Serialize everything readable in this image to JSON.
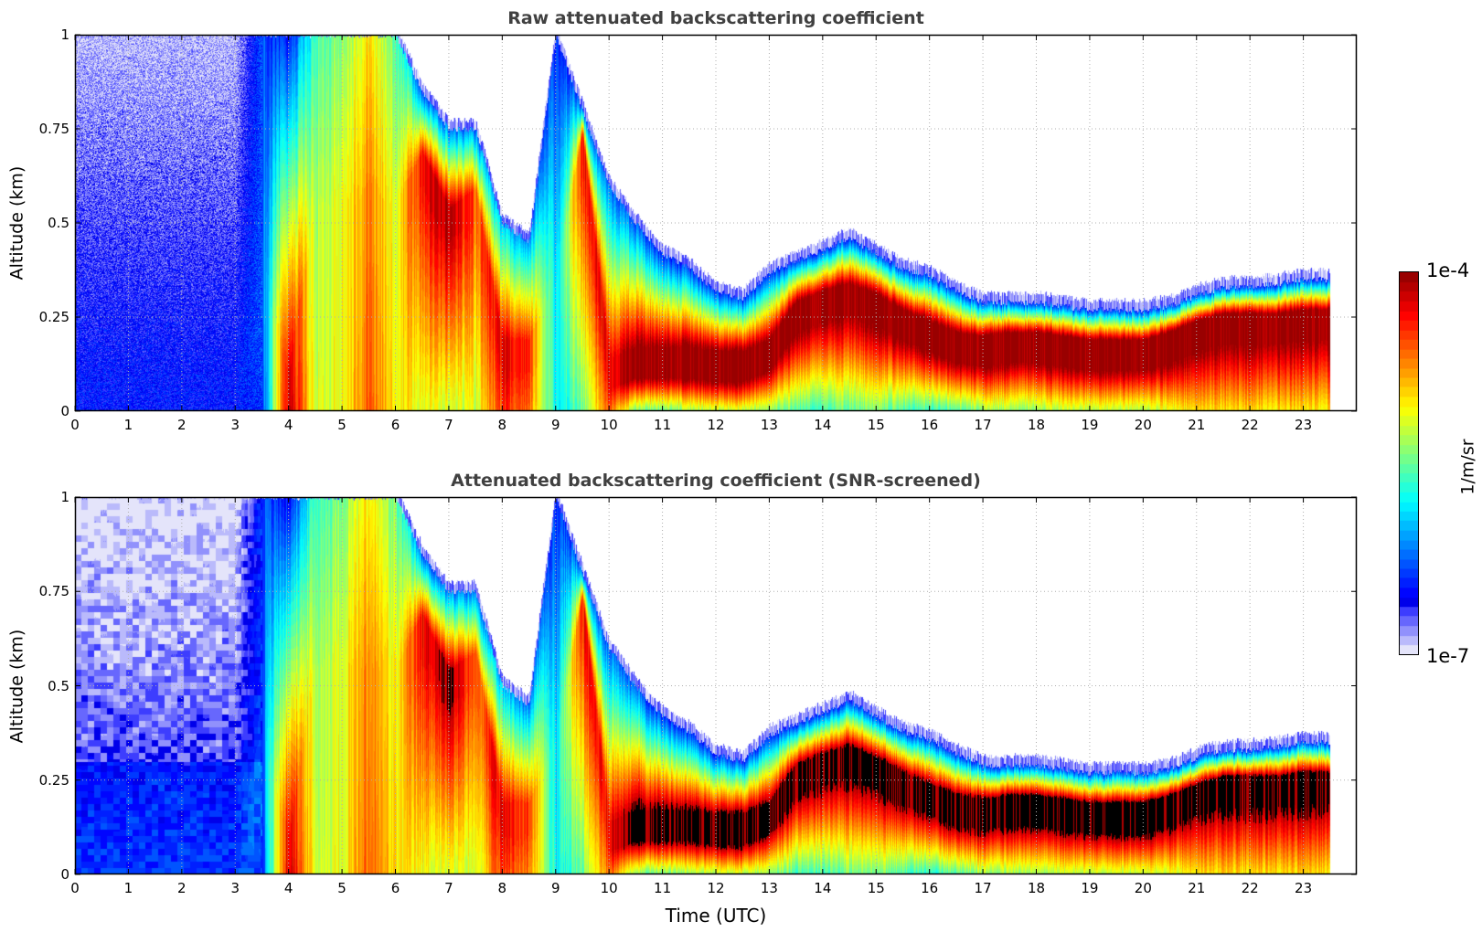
{
  "chart_data": {
    "type": "heatmap",
    "xlabel": "Time (UTC)",
    "ylabel": "Altitude (km)",
    "xlim": [
      0,
      24
    ],
    "ylim": [
      0,
      1
    ],
    "xticks": [
      "0",
      "1",
      "2",
      "3",
      "4",
      "5",
      "6",
      "7",
      "8",
      "9",
      "10",
      "11",
      "12",
      "13",
      "14",
      "15",
      "16",
      "17",
      "18",
      "19",
      "20",
      "21",
      "22",
      "23"
    ],
    "yticks": [
      "0",
      "0.25",
      "0.5",
      "0.75",
      "1"
    ],
    "grid": true,
    "panels": [
      {
        "title": "Raw attenuated backscattering coefficient",
        "screened": false
      },
      {
        "title": "Attenuated backscattering coefficient (SNR-screened)",
        "screened": true
      }
    ],
    "colorbar": {
      "scale": "log10",
      "min": 1e-07,
      "max": 0.0001,
      "min_label": "1e-7",
      "max_label": "1e-4",
      "unit": "1/m/sr",
      "placement": "right"
    },
    "profile_samples": {
      "note_units": "time in hours UTC, altitude in km, values are log10(1/m/sr)",
      "time_h": [
        0,
        0.5,
        1,
        1.5,
        2,
        2.5,
        3,
        3.5,
        4,
        4.5,
        5,
        5.5,
        6,
        6.5,
        7,
        7.5,
        8,
        8.5,
        9,
        9.5,
        10,
        10.5,
        11,
        11.5,
        12,
        12.5,
        13,
        13.5,
        14,
        14.5,
        15,
        15.5,
        16,
        16.5,
        17,
        17.5,
        18,
        18.5,
        19,
        19.5,
        20,
        20.5,
        21,
        21.5,
        22,
        22.5,
        23,
        23.5
      ],
      "surface_log": [
        -6.5,
        -6.5,
        -6.5,
        -6.5,
        -6.5,
        -6.5,
        -6.5,
        -6.4,
        -4.1,
        -5.2,
        -5.1,
        -4.6,
        -5.0,
        -5.1,
        -5.2,
        -5.2,
        -4.5,
        -4.7,
        -5.8,
        -5.5,
        -4.6,
        -5.5,
        -5.5,
        -5.4,
        -5.3,
        -5.3,
        -5.4,
        -5.6,
        -5.6,
        -5.5,
        -5.5,
        -5.6,
        -5.7,
        -5.6,
        -5.4,
        -5.4,
        -5.4,
        -5.3,
        -5.3,
        -5.3,
        -5.3,
        -5.2,
        -5.0,
        -5.0,
        -5.0,
        -5.0,
        -5.0,
        -5.0
      ],
      "peak_alt_km": [
        0.05,
        0.05,
        0.05,
        0.05,
        0.05,
        0.05,
        0.05,
        0.3,
        0.05,
        0.5,
        0.5,
        0.5,
        0.5,
        0.65,
        0.5,
        0.55,
        0.15,
        0.15,
        0.3,
        0.7,
        0.1,
        0.13,
        0.13,
        0.13,
        0.12,
        0.12,
        0.15,
        0.25,
        0.28,
        0.3,
        0.27,
        0.23,
        0.2,
        0.17,
        0.16,
        0.17,
        0.17,
        0.16,
        0.15,
        0.15,
        0.15,
        0.17,
        0.2,
        0.22,
        0.22,
        0.22,
        0.23,
        0.23
      ],
      "peak_log": [
        -6.5,
        -6.5,
        -6.5,
        -6.5,
        -6.5,
        -6.5,
        -6.5,
        -6.3,
        -4.2,
        -5.3,
        -5.1,
        -4.7,
        -5.1,
        -4.3,
        -4.1,
        -4.6,
        -4.3,
        -4.5,
        -5.9,
        -4.4,
        -4.3,
        -4.0,
        -4.0,
        -4.0,
        -4.0,
        -4.0,
        -4.0,
        -4.0,
        -4.0,
        -4.0,
        -4.0,
        -4.0,
        -4.0,
        -4.0,
        -4.0,
        -4.0,
        -4.0,
        -4.0,
        -4.0,
        -4.0,
        -4.0,
        -4.0,
        -4.0,
        -4.0,
        -4.0,
        -4.0,
        -4.0,
        -4.0
      ],
      "signal_top_km": [
        1,
        1,
        1,
        1,
        1,
        1,
        1,
        1,
        1,
        1,
        1,
        1,
        1,
        0.85,
        0.75,
        0.75,
        0.5,
        0.45,
        1,
        0.8,
        0.6,
        0.5,
        0.42,
        0.38,
        0.32,
        0.3,
        0.37,
        0.4,
        0.43,
        0.46,
        0.42,
        0.38,
        0.36,
        0.32,
        0.29,
        0.29,
        0.29,
        0.28,
        0.27,
        0.27,
        0.27,
        0.28,
        0.31,
        0.33,
        0.33,
        0.34,
        0.35,
        0.35
      ],
      "top_log": [
        -6.9,
        -6.9,
        -6.9,
        -6.9,
        -6.9,
        -6.9,
        -6.9,
        -6.3,
        -6.5,
        -5.6,
        -5.4,
        -5.0,
        -5.5,
        -6.3,
        -6.2,
        -6.2,
        -6.0,
        -6.2,
        -6.4,
        -6.3,
        -6.2,
        -6.3,
        -6.4,
        -6.4,
        -6.4,
        -6.4,
        -6.4,
        -6.4,
        -6.4,
        -6.4,
        -6.4,
        -6.4,
        -6.4,
        -6.4,
        -6.4,
        -6.4,
        -6.4,
        -6.4,
        -6.4,
        -6.4,
        -6.4,
        -6.4,
        -6.4,
        -6.4,
        -6.4,
        -6.4,
        -6.4,
        -6.4
      ]
    }
  },
  "colors": {
    "title": "#404040",
    "grid": "#b0b0b0",
    "screened_mask": "#000000"
  }
}
